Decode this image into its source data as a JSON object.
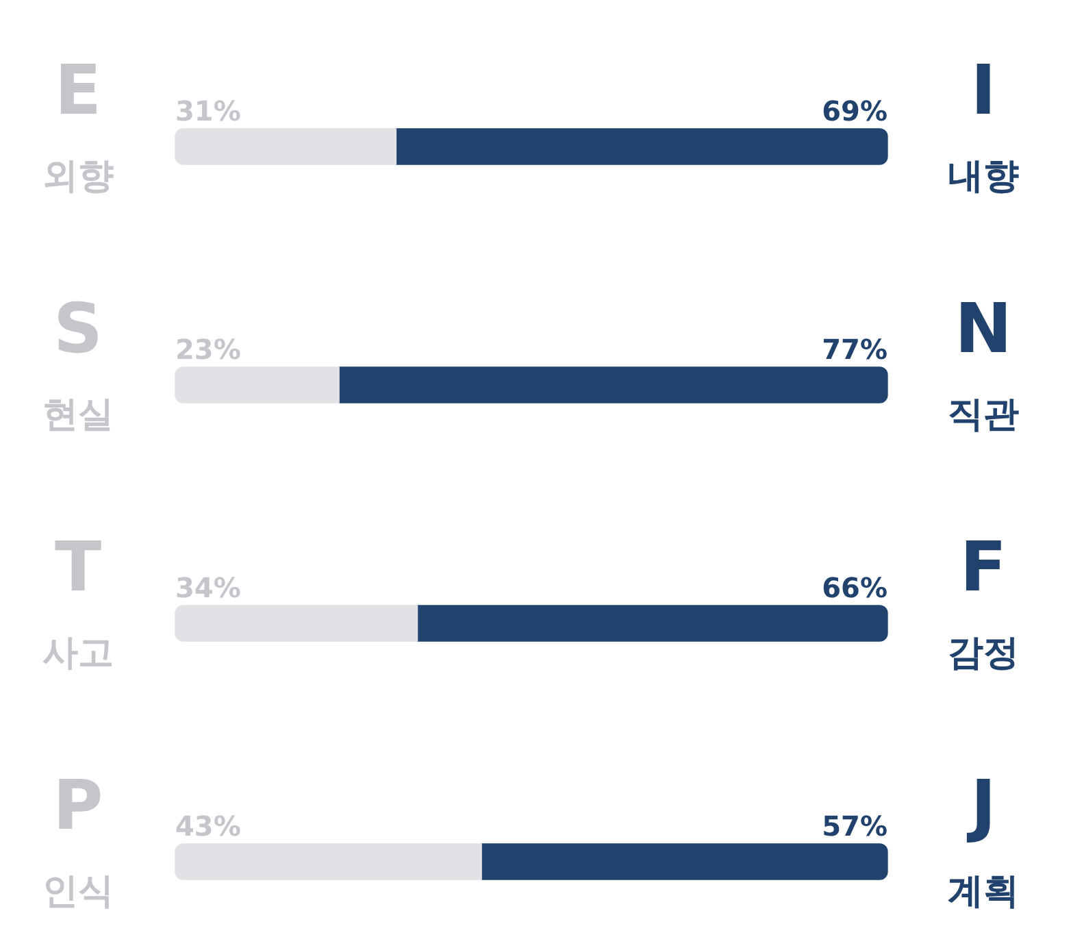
{
  "chart_data": {
    "type": "bar",
    "orientation": "horizontal",
    "stacked": true,
    "grid": false,
    "legend": false,
    "categories": [
      "E\n외향",
      "S\n현실",
      "T\n사고",
      "P\n인식"
    ],
    "y2_categories": [
      "I\n내향",
      "N\n직관",
      "F\n감정",
      "J\n계획"
    ],
    "series": [
      {
        "color": "#e1e2e6",
        "values": [
          31,
          23,
          34,
          43
        ],
        "value_labels": [
          "31%",
          "23%",
          "34%",
          "43%"
        ]
      },
      {
        "color": "#22426e",
        "values": [
          69,
          77,
          66,
          57
        ],
        "value_labels": [
          "69%",
          "77%",
          "66%",
          "57%"
        ]
      }
    ]
  }
}
